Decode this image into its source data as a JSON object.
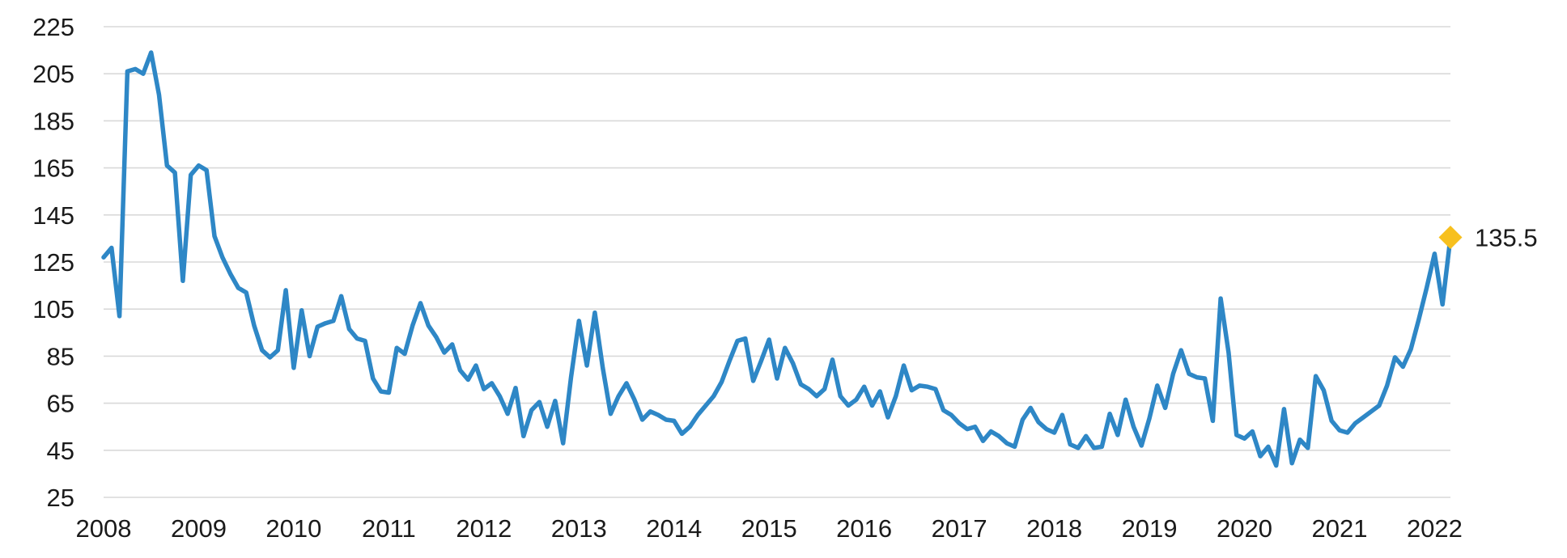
{
  "chart_data": {
    "type": "line",
    "title": "",
    "xlabel": "",
    "ylabel": "",
    "x_range": [
      "2008-01",
      "2022-03"
    ],
    "interval": "monthly",
    "values": [
      127,
      131,
      102,
      206,
      207,
      205,
      214,
      196,
      166,
      163,
      117,
      162,
      166,
      164,
      136,
      127,
      120,
      114,
      112,
      98,
      87.5,
      84.5,
      87.5,
      113,
      80,
      104.5,
      85,
      97.5,
      99,
      100,
      110.5,
      96.5,
      92.5,
      91.5,
      75.5,
      70,
      69.5,
      88.5,
      86,
      98,
      107.5,
      98,
      93,
      86.5,
      90,
      79,
      75,
      81,
      71,
      73.5,
      68,
      60.5,
      71.5,
      51,
      62,
      65.5,
      55,
      66,
      48,
      76,
      100,
      81,
      103.5,
      80,
      60.5,
      68,
      73.5,
      66.5,
      58,
      61.5,
      60,
      58,
      57.5,
      52,
      55,
      60,
      64,
      68,
      74,
      83,
      91.5,
      92.5,
      74.5,
      83,
      92,
      75.5,
      88.5,
      82,
      73,
      71,
      68,
      71,
      83.5,
      68,
      64,
      66.5,
      72,
      64,
      70,
      59,
      68,
      81,
      70.5,
      72.5,
      72,
      71,
      62,
      60,
      56.5,
      54,
      55,
      49,
      53,
      51,
      48,
      46.5,
      58,
      63,
      57,
      54,
      52.5,
      60,
      47.5,
      46,
      51,
      46,
      46.5,
      60.5,
      51.5,
      66.5,
      55,
      47,
      58.5,
      72.5,
      63,
      77.5,
      87.5,
      77.5,
      76,
      75.5,
      57.5,
      109.5,
      86.5,
      51.5,
      50,
      53,
      42.5,
      46.5,
      38.5,
      62.5,
      39.5,
      49.5,
      46,
      76.5,
      70.5,
      57.5,
      53.5,
      52.5,
      56.5,
      59,
      61.5,
      64,
      72.5,
      84.5,
      80.5,
      88,
      100.5,
      114,
      128.5,
      107,
      135.5
    ],
    "ylim": [
      25,
      225
    ],
    "y_ticks": [
      25,
      45,
      65,
      85,
      105,
      125,
      145,
      165,
      185,
      205,
      225
    ],
    "x_tick_labels": [
      "2008",
      "2009",
      "2010",
      "2011",
      "2012",
      "2013",
      "2014",
      "2015",
      "2016",
      "2017",
      "2018",
      "2019",
      "2020",
      "2021",
      "2022"
    ],
    "grid": "horizontal",
    "legend": "none",
    "line_color": "#2E87C6",
    "grid_color": "#d9d9d9",
    "text_color": "#1a1a1a",
    "marker": {
      "shape": "diamond",
      "color": "#F7C01E",
      "position": "last-point",
      "label": "135.5"
    }
  }
}
